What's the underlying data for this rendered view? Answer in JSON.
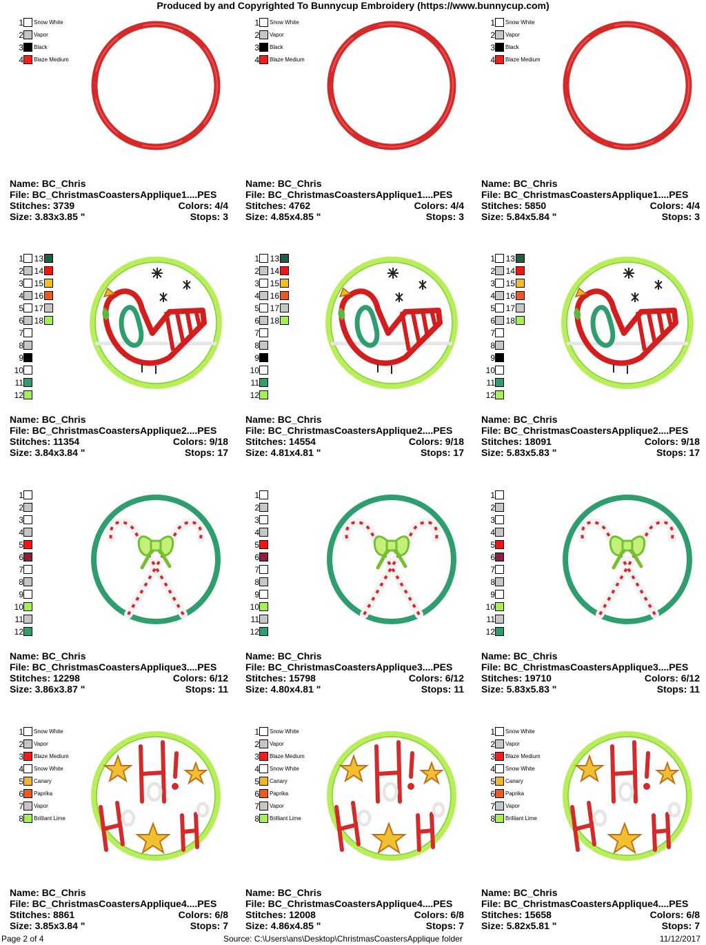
{
  "header": "Produced by and Copyrighted To Bunnycup Embroidery (https://www.bunnycup.com)",
  "footer": {
    "page": "Page 2 of 4",
    "source": "Source:  C:\\Users\\ans\\Desktop\\ChristmasCoastersApplique folder",
    "date": "11/12/2017"
  },
  "labels": {
    "name": "Name:",
    "file": "File:",
    "stitches": "Stitches:",
    "colors": "Colors:",
    "size": "Size:",
    "stops": "Stops:"
  },
  "rows": [
    {
      "palette_type": "named",
      "design": "ring-red",
      "palette": [
        {
          "num": "1",
          "name": "Snow White",
          "color": "#ffffff"
        },
        {
          "num": "2",
          "name": "Vapor",
          "color": "#c6c6c6"
        },
        {
          "num": "3",
          "name": "Black",
          "color": "#000000"
        },
        {
          "num": "4",
          "name": "Blaze Medium",
          "color": "#ff1a1a"
        }
      ],
      "designs": [
        {
          "name": "BC_Chris",
          "file": "BC_ChristmasCoastersApplique1....PES",
          "stitches": "3739",
          "colors": "4/4",
          "size": "3.83x3.85 \"",
          "stops": "3"
        },
        {
          "name": "BC_Chris",
          "file": "BC_ChristmasCoastersApplique1....PES",
          "stitches": "4762",
          "colors": "4/4",
          "size": "4.85x4.85 \"",
          "stops": "3"
        },
        {
          "name": "BC_Chris",
          "file": "BC_ChristmasCoastersApplique1....PES",
          "stitches": "5850",
          "colors": "4/4",
          "size": "5.84x5.84 \"",
          "stops": "3"
        }
      ]
    },
    {
      "palette_type": "numbered",
      "design": "bird",
      "palette": [
        {
          "num": "1",
          "color": "#ffffff"
        },
        {
          "num": "2",
          "color": "#c6c6c6"
        },
        {
          "num": "3",
          "color": "#ffffff"
        },
        {
          "num": "4",
          "color": "#c6c6c6"
        },
        {
          "num": "5",
          "color": "#ffffff"
        },
        {
          "num": "6",
          "color": "#c6c6c6"
        },
        {
          "num": "7",
          "color": "#ffffff"
        },
        {
          "num": "8",
          "color": "#c6c6c6"
        },
        {
          "num": "9",
          "color": "#000000"
        },
        {
          "num": "10",
          "color": "#ffffff"
        },
        {
          "num": "11",
          "color": "#2e9e6e"
        },
        {
          "num": "12",
          "color": "#a6f24a"
        }
      ],
      "palette2": [
        {
          "num": "13",
          "color": "#1e5e44"
        },
        {
          "num": "14",
          "color": "#ff1010"
        },
        {
          "num": "15",
          "color": "#f0c020"
        },
        {
          "num": "16",
          "color": "#ee5a1e"
        },
        {
          "num": "17",
          "color": "#c6c6c6"
        },
        {
          "num": "18",
          "color": "#a6f24a"
        }
      ],
      "designs": [
        {
          "name": "BC_Chris",
          "file": "BC_ChristmasCoastersApplique2....PES",
          "stitches": "11354",
          "colors": "9/18",
          "size": "3.84x3.84 \"",
          "stops": "17"
        },
        {
          "name": "BC_Chris",
          "file": "BC_ChristmasCoastersApplique2....PES",
          "stitches": "14554",
          "colors": "9/18",
          "size": "4.81x4.81 \"",
          "stops": "17"
        },
        {
          "name": "BC_Chris",
          "file": "BC_ChristmasCoastersApplique2....PES",
          "stitches": "18091",
          "colors": "9/18",
          "size": "5.83x5.83 \"",
          "stops": "17"
        }
      ]
    },
    {
      "palette_type": "numbered",
      "design": "candy",
      "palette": [
        {
          "num": "1",
          "color": "#ffffff"
        },
        {
          "num": "2",
          "color": "#c6c6c6"
        },
        {
          "num": "3",
          "color": "#ffffff"
        },
        {
          "num": "4",
          "color": "#c6c6c6"
        },
        {
          "num": "5",
          "color": "#ff1010"
        },
        {
          "num": "6",
          "color": "#8e1e3e"
        },
        {
          "num": "7",
          "color": "#ffffff"
        },
        {
          "num": "8",
          "color": "#c6c6c6"
        },
        {
          "num": "9",
          "color": "#ffffff"
        },
        {
          "num": "10",
          "color": "#a6f24a"
        },
        {
          "num": "11",
          "color": "#c6c6c6"
        },
        {
          "num": "12",
          "color": "#2e9e6e"
        }
      ],
      "designs": [
        {
          "name": "BC_Chris",
          "file": "BC_ChristmasCoastersApplique3....PES",
          "stitches": "12298",
          "colors": "6/12",
          "size": "3.86x3.87 \"",
          "stops": "11"
        },
        {
          "name": "BC_Chris",
          "file": "BC_ChristmasCoastersApplique3....PES",
          "stitches": "15798",
          "colors": "6/12",
          "size": "4.80x4.81 \"",
          "stops": "11"
        },
        {
          "name": "BC_Chris",
          "file": "BC_ChristmasCoastersApplique3....PES",
          "stitches": "19710",
          "colors": "6/12",
          "size": "5.83x5.83 \"",
          "stops": "11"
        }
      ]
    },
    {
      "palette_type": "named",
      "design": "hohoho",
      "palette": [
        {
          "num": "1",
          "name": "Snow White",
          "color": "#ffffff"
        },
        {
          "num": "2",
          "name": "Vapor",
          "color": "#c6c6c6"
        },
        {
          "num": "3",
          "name": "Blaze Medium",
          "color": "#ff1a1a"
        },
        {
          "num": "4",
          "name": "Snow White",
          "color": "#ffffff"
        },
        {
          "num": "5",
          "name": "Canary",
          "color": "#f0b820"
        },
        {
          "num": "6",
          "name": "Paprika",
          "color": "#ee5a1e"
        },
        {
          "num": "7",
          "name": "Vapor",
          "color": "#c6c6c6"
        },
        {
          "num": "8",
          "name": "Brilliant Lime",
          "color": "#a6f24a"
        }
      ],
      "designs": [
        {
          "name": "BC_Chris",
          "file": "BC_ChristmasCoastersApplique4....PES",
          "stitches": "8861",
          "colors": "6/8",
          "size": "3.85x3.84 \"",
          "stops": "7"
        },
        {
          "name": "BC_Chris",
          "file": "BC_ChristmasCoastersApplique4....PES",
          "stitches": "12008",
          "colors": "6/8",
          "size": "4.86x4.85 \"",
          "stops": "7"
        },
        {
          "name": "BC_Chris",
          "file": "BC_ChristmasCoastersApplique4....PES",
          "stitches": "15658",
          "colors": "6/8",
          "size": "5.82x5.81 \"",
          "stops": "7"
        }
      ]
    }
  ]
}
